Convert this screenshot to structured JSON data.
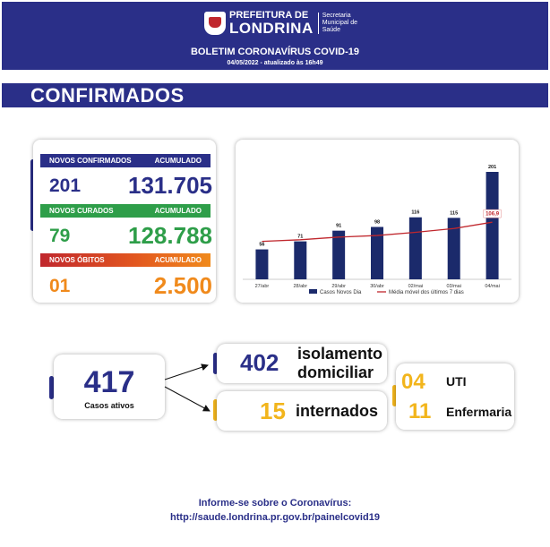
{
  "header": {
    "org_line1": "PREFEITURA DE",
    "org_line2": "LONDRINA",
    "secretaria": [
      "Secretaria",
      "Municipal de",
      "Saúde"
    ],
    "bulletin_title": "BOLETIM CORONAVÍRUS COVID-19",
    "date_line": "04/05/2022 - atualizado às 16h49"
  },
  "section_title": "CONFIRMADOS",
  "stats": {
    "confirmed_label": "NOVOS CONFIRMADOS",
    "confirmed_acc_label": "ACUMULADO",
    "confirmed_new": "201",
    "confirmed_total": "131.705",
    "cured_label": "NOVOS CURADOS",
    "cured_acc_label": "ACUMULADO",
    "cured_new": "79",
    "cured_total": "128.788",
    "deaths_label": "NOVOS ÓBITOS",
    "deaths_acc_label": "ACUMULADO",
    "deaths_new": "01",
    "deaths_total": "2.500"
  },
  "colors": {
    "navy": "#2a2f88",
    "green": "#2e9e49",
    "gold": "#f2b51c",
    "orange": "#f08a1c",
    "red": "#c0272d",
    "bar": "#1b2a6b"
  },
  "chart_data": {
    "type": "bar",
    "categories": [
      "27/abr",
      "28/abr",
      "29/abr",
      "30/abr",
      "02/mai",
      "03/mai",
      "04/mai"
    ],
    "series": [
      {
        "name": "Casos Novos Dia",
        "type": "bar",
        "values": [
          56,
          71,
          91,
          98,
          116,
          115,
          201
        ]
      },
      {
        "name": "Média móvel dos últimos 7 dias",
        "type": "line",
        "values": [
          71,
          74,
          79,
          82,
          88,
          95,
          106.9
        ]
      }
    ],
    "highlight_label": "106,9",
    "ymax": 201
  },
  "active": {
    "number": "417",
    "label": "Casos ativos"
  },
  "breakdown": {
    "home_number": "402",
    "home_label_1": "isolamento",
    "home_label_2": "domiciliar",
    "hosp_number": "15",
    "hosp_label": "internados",
    "uti_number": "04",
    "uti_label": "UTI",
    "ward_number": "11",
    "ward_label": "Enfermaria"
  },
  "footer": {
    "line1": "Informe-se sobre o Coronavírus:",
    "line2": "http://saude.londrina.pr.gov.br/painelcovid19"
  }
}
